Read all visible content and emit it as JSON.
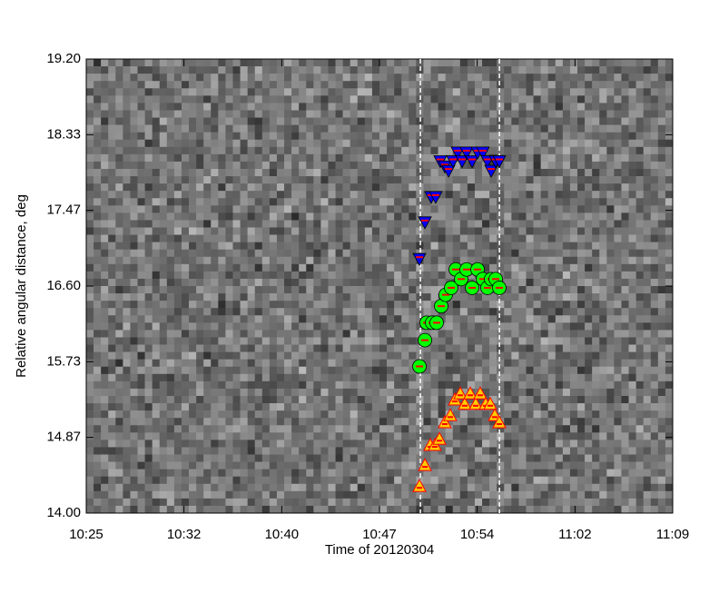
{
  "chart_data": {
    "type": "scatter",
    "xlabel": "Time of 20120304",
    "ylabel": "Relative angular distance, deg",
    "xlim": [
      625,
      669
    ],
    "xticks": [
      {
        "value": 625,
        "label": "10:25"
      },
      {
        "value": 632.33,
        "label": "10:32"
      },
      {
        "value": 639.67,
        "label": "10:40"
      },
      {
        "value": 647,
        "label": "10:47"
      },
      {
        "value": 654.33,
        "label": "10:54"
      },
      {
        "value": 661.67,
        "label": "11:02"
      },
      {
        "value": 669,
        "label": "11:09"
      }
    ],
    "ylim": [
      14.0,
      19.2
    ],
    "yticks": [
      {
        "value": 14.0,
        "label": "14.00"
      },
      {
        "value": 14.867,
        "label": "14.87"
      },
      {
        "value": 15.733,
        "label": "15.73"
      },
      {
        "value": 16.6,
        "label": "16.60"
      },
      {
        "value": 17.467,
        "label": "17.47"
      },
      {
        "value": 18.333,
        "label": "18.33"
      },
      {
        "value": 19.2,
        "label": "19.20"
      }
    ],
    "vlines": [
      650.07,
      656.0
    ],
    "series": [
      {
        "color": "#0000ff",
        "marker": "triangle-down",
        "x": [
          650.0,
          650.41,
          650.88,
          651.22,
          651.56,
          651.9,
          652.18,
          652.52,
          652.86,
          653.2,
          653.54,
          653.95,
          654.36,
          654.76,
          655.1,
          655.38,
          655.72,
          655.99
        ],
        "values": [
          16.91,
          17.33,
          17.62,
          17.62,
          18.03,
          17.97,
          17.92,
          18.03,
          18.13,
          18.03,
          18.13,
          18.03,
          18.13,
          18.13,
          18.03,
          17.92,
          18.03,
          18.03
        ]
      },
      {
        "color": "#00ff00",
        "marker": "circle",
        "x": [
          650.0,
          650.41,
          650.54,
          650.95,
          651.29,
          651.63,
          651.97,
          652.38,
          652.72,
          653.13,
          653.54,
          653.95,
          654.36,
          654.76,
          655.1,
          655.38,
          655.72,
          655.99
        ],
        "values": [
          15.68,
          15.98,
          16.18,
          16.18,
          16.18,
          16.37,
          16.5,
          16.58,
          16.79,
          16.68,
          16.79,
          16.58,
          16.79,
          16.68,
          16.58,
          16.68,
          16.68,
          16.58
        ]
      },
      {
        "color": "#ffcc00",
        "marker": "triangle-up",
        "x": [
          650.0,
          650.41,
          650.81,
          651.15,
          651.5,
          651.9,
          652.31,
          652.65,
          653.06,
          653.4,
          653.81,
          654.22,
          654.56,
          654.97,
          655.31,
          655.65,
          655.99
        ],
        "values": [
          14.31,
          14.55,
          14.78,
          14.78,
          14.85,
          15.04,
          15.12,
          15.3,
          15.37,
          15.25,
          15.37,
          15.25,
          15.37,
          15.25,
          15.25,
          15.12,
          15.04
        ]
      }
    ]
  }
}
